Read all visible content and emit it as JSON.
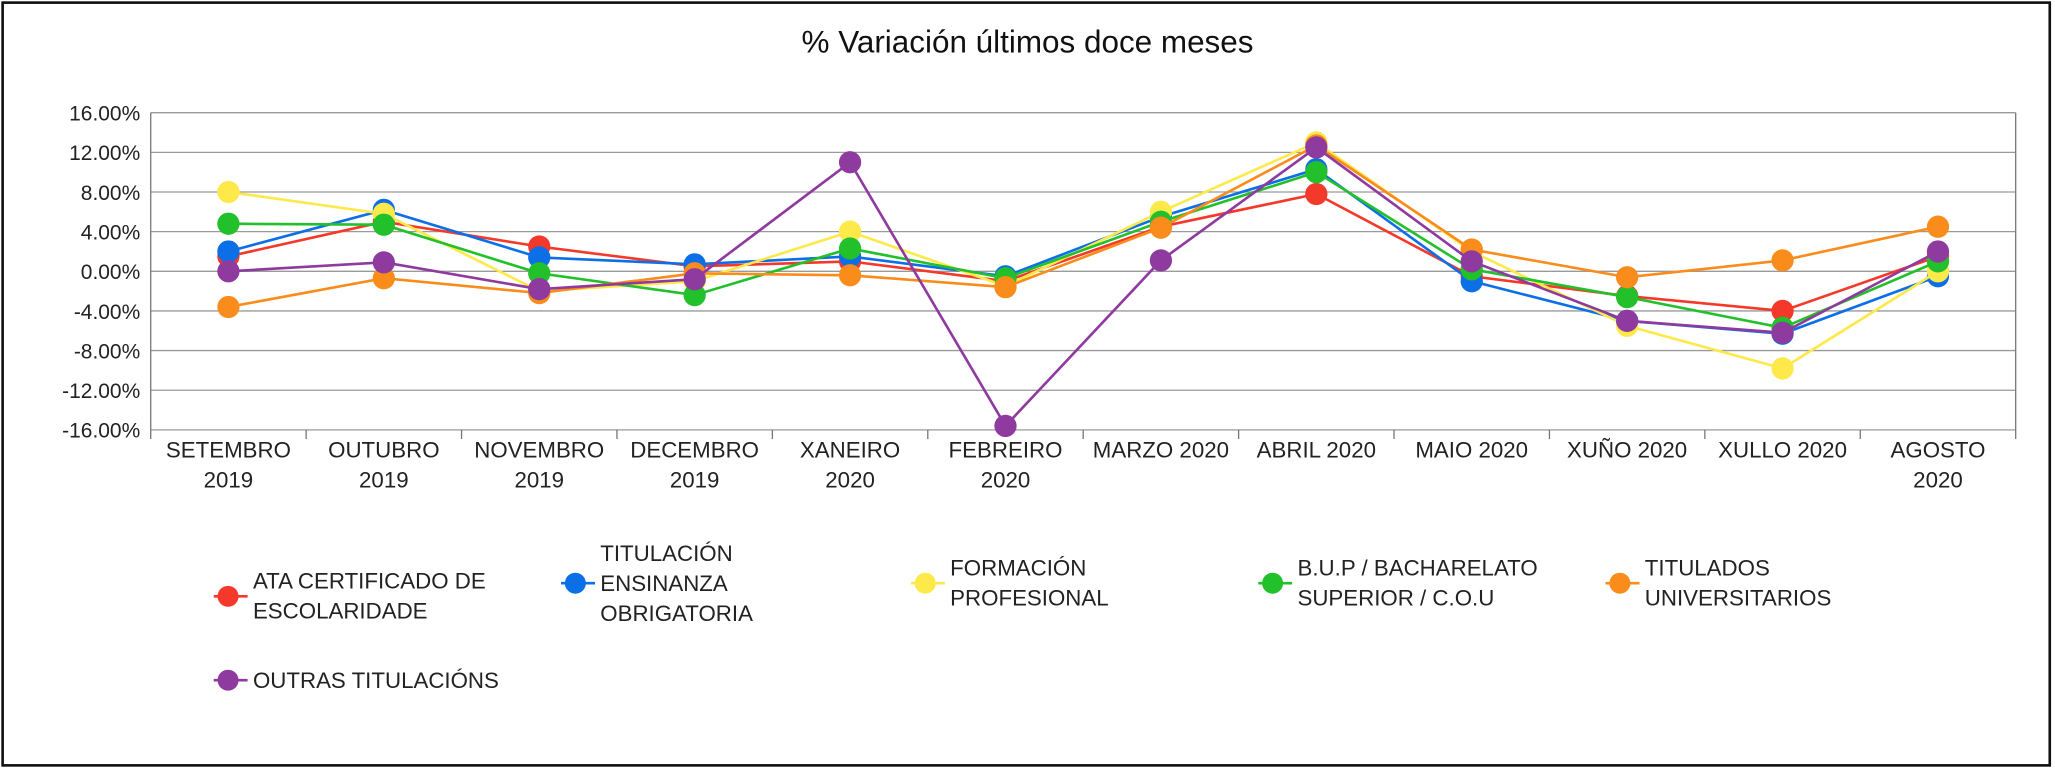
{
  "chart_data": {
    "type": "line",
    "title": "% Variación últimos doce meses",
    "categories": [
      "SETEMBRO 2019",
      "OUTUBRO 2019",
      "NOVEMBRO 2019",
      "DECEMBRO 2019",
      "XANEIRO 2020",
      "FEBREIRO 2020",
      "MARZO 2020",
      "ABRIL 2020",
      "MAIO 2020",
      "XUÑO 2020",
      "XULLO 2020",
      "AGOSTO 2020"
    ],
    "series": [
      {
        "name": "ATA CERTIFICADO DE ESCOLARIDADE",
        "color": "#f4392a",
        "values": [
          1.5,
          5.0,
          2.5,
          0.5,
          1.0,
          -1.0,
          4.5,
          7.8,
          -0.5,
          -2.5,
          -4.0,
          1.5
        ]
      },
      {
        "name": "TITULACIÓN ENSINANZA OBRIGATORIA",
        "color": "#0c6fe8",
        "values": [
          2.0,
          6.2,
          1.4,
          0.7,
          1.5,
          -0.5,
          5.5,
          10.3,
          -1.0,
          -5.0,
          -6.3,
          -0.5
        ]
      },
      {
        "name": "FORMACIÓN PROFESIONAL",
        "color": "#fde94a",
        "values": [
          8.0,
          5.8,
          -2.0,
          -1.0,
          4.0,
          -1.5,
          6.0,
          13.0,
          2.0,
          -5.5,
          -9.8,
          0.0
        ]
      },
      {
        "name": "B.U.P / BACHARELATO SUPERIOR / C.O.U",
        "color": "#22c02a",
        "values": [
          4.8,
          4.7,
          -0.2,
          -2.4,
          2.3,
          -0.7,
          5.0,
          10.0,
          0.2,
          -2.6,
          -5.7,
          1.0
        ]
      },
      {
        "name": "TITULADOS UNIVERSITARIOS",
        "color": "#f98c1a",
        "values": [
          -3.6,
          -0.7,
          -2.2,
          -0.2,
          -0.4,
          -1.6,
          4.4,
          12.7,
          2.2,
          -0.6,
          1.1,
          4.5
        ]
      },
      {
        "name": "OUTRAS TITULACIÓNS",
        "color": "#8e3a9e",
        "values": [
          0.0,
          0.9,
          -1.8,
          -0.8,
          11.0,
          -15.6,
          1.1,
          12.5,
          1.0,
          -5.0,
          -6.2,
          2.0
        ]
      }
    ],
    "ylim": [
      -16,
      16
    ],
    "yticks": [
      {
        "value": -16,
        "label": "-16.00%"
      },
      {
        "value": -12,
        "label": "-12.00%"
      },
      {
        "value": -8,
        "label": "-8.00%"
      },
      {
        "value": -4,
        "label": "-4.00%"
      },
      {
        "value": 0,
        "label": "0.00%"
      },
      {
        "value": 4,
        "label": "4.00%"
      },
      {
        "value": 8,
        "label": "8.00%"
      },
      {
        "value": 12,
        "label": "12.00%"
      },
      {
        "value": 16,
        "label": "16.00%"
      }
    ],
    "grid": true,
    "legend": "bottom"
  }
}
